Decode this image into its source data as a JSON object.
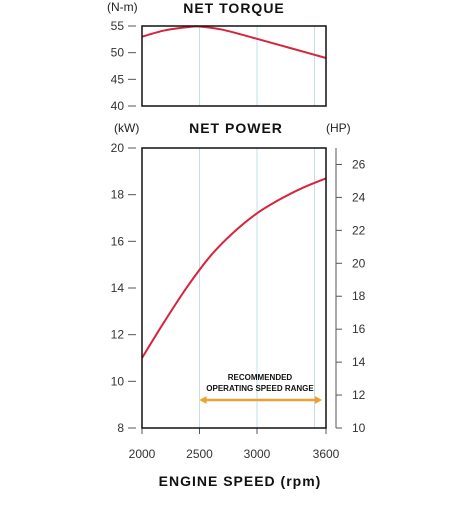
{
  "chart_data": [
    {
      "type": "line",
      "title": "NET TORQUE",
      "ylabel": "(N-m)",
      "xlim": [
        2000,
        3600
      ],
      "ylim": [
        40,
        55
      ],
      "yticks": [
        40,
        45,
        50,
        55
      ],
      "xgrid": [
        2500,
        3000,
        3500
      ],
      "grid": true,
      "series": [
        {
          "x": [
            2000,
            2200,
            2400,
            2500,
            2700,
            3000,
            3300,
            3600
          ],
          "values": [
            53,
            54.2,
            54.8,
            54.9,
            54.3,
            52.6,
            50.8,
            49
          ]
        }
      ]
    },
    {
      "type": "line",
      "title": "NET POWER",
      "ylabel": "(kW)",
      "y2label": "(HP)",
      "xlabel": "ENGINE SPEED (rpm)",
      "xlim": [
        2000,
        3600
      ],
      "xticks": [
        2000,
        2500,
        3000,
        3600
      ],
      "xgrid": [
        2500,
        3000,
        3500
      ],
      "ylim": [
        8,
        20
      ],
      "yticks": [
        8,
        10,
        12,
        14,
        16,
        18,
        20
      ],
      "y2lim": [
        10,
        27
      ],
      "y2ticks": [
        10,
        12,
        14,
        16,
        18,
        20,
        22,
        24,
        26
      ],
      "grid": true,
      "series": [
        {
          "x": [
            2000,
            2200,
            2400,
            2600,
            2800,
            3000,
            3200,
            3400,
            3600
          ],
          "values": [
            11,
            12.6,
            14.1,
            15.4,
            16.4,
            17.2,
            17.8,
            18.3,
            18.7
          ]
        }
      ],
      "annotation": {
        "text": [
          "RECOMMENDED",
          "OPERATING SPEED RANGE"
        ],
        "range": [
          2500,
          3600
        ],
        "color": "#f0a030"
      }
    }
  ],
  "colors": {
    "curve": "#d6243b",
    "grid": "#bfe0e8",
    "range": "#f0a030"
  }
}
